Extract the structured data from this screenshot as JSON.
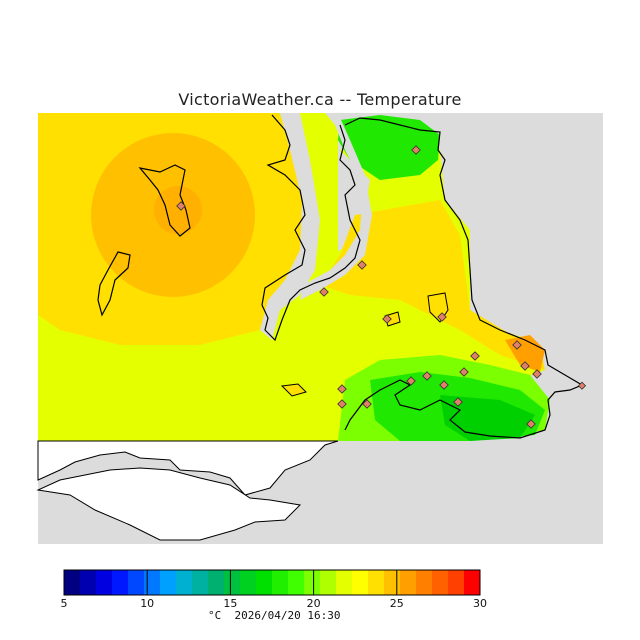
{
  "title": "VictoriaWeather.ca -- Temperature",
  "map": {
    "variable": "Temperature",
    "units": "°C",
    "land_color": "#dcdcdc",
    "water_background": "#ffffff",
    "station_marker_color": "#e0806a",
    "zone_colors": {
      "t22": "#e4ff00",
      "t23": "#ffe000",
      "t24": "#ffc000",
      "t25": "#ffb000",
      "t20": "#7cff00",
      "t19": "#20e800",
      "t18": "#00d000",
      "t26": "#ff9000"
    }
  },
  "legend": {
    "min": 5,
    "max": 30,
    "ticks": [
      "5",
      "10",
      "15",
      "20",
      "25",
      "30"
    ],
    "units_label": "°C",
    "timestamp": "2026/04/20 16:30",
    "colors": [
      "#000080",
      "#0000b0",
      "#0000e0",
      "#0018ff",
      "#0048ff",
      "#0078ff",
      "#00a0ff",
      "#00b0d0",
      "#00b0a0",
      "#00b070",
      "#00c040",
      "#00d020",
      "#00e000",
      "#20f000",
      "#40ff00",
      "#7cff00",
      "#b0ff00",
      "#e4ff00",
      "#ffff00",
      "#ffe000",
      "#ffc000",
      "#ffa000",
      "#ff8000",
      "#ff6000",
      "#ff4000",
      "#ff0000"
    ]
  }
}
